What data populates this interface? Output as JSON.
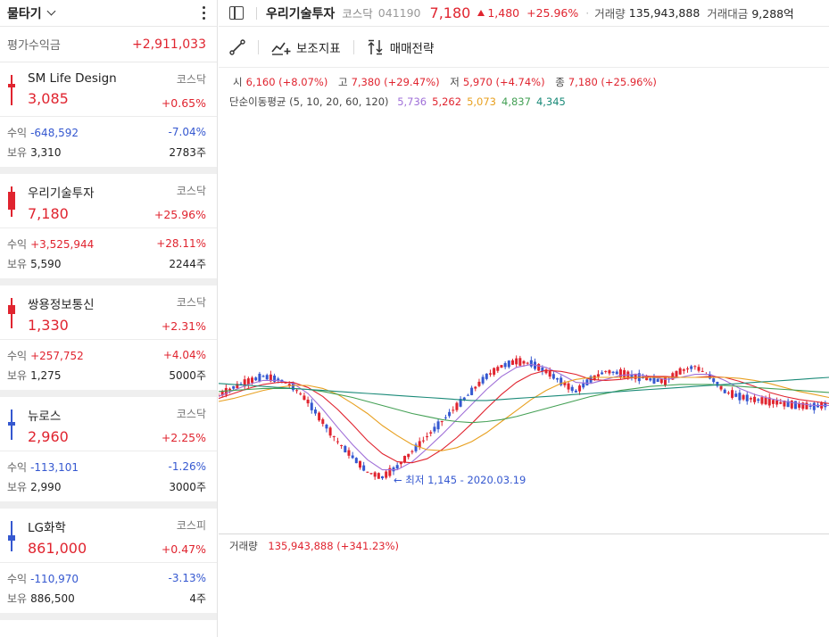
{
  "left": {
    "title": "물타기",
    "eval_label": "평가수익금",
    "eval_value": "+2,911,033",
    "stocks": [
      {
        "name": "SM Life Design",
        "market": "코스닥",
        "price": "3,085",
        "change_pct": "+0.65%",
        "profit_label": "수익",
        "profit": "-648,592",
        "profit_pct": "-7.04%",
        "hold_label": "보유",
        "hold_value": "3,310",
        "qty": "2783주",
        "price_color": "red",
        "profit_color": "blue"
      },
      {
        "name": "우리기술투자",
        "market": "코스닥",
        "price": "7,180",
        "change_pct": "+25.96%",
        "profit_label": "수익",
        "profit": "+3,525,944",
        "profit_pct": "+28.11%",
        "hold_label": "보유",
        "hold_value": "5,590",
        "qty": "2244주",
        "price_color": "red",
        "profit_color": "red"
      },
      {
        "name": "쌍용정보통신",
        "market": "코스닥",
        "price": "1,330",
        "change_pct": "+2.31%",
        "profit_label": "수익",
        "profit": "+257,752",
        "profit_pct": "+4.04%",
        "hold_label": "보유",
        "hold_value": "1,275",
        "qty": "5000주",
        "price_color": "red",
        "profit_color": "red"
      },
      {
        "name": "뉴로스",
        "market": "코스닥",
        "price": "2,960",
        "change_pct": "+2.25%",
        "profit_label": "수익",
        "profit": "-113,101",
        "profit_pct": "-1.26%",
        "hold_label": "보유",
        "hold_value": "2,990",
        "qty": "3000주",
        "price_color": "red",
        "profit_color": "blue"
      },
      {
        "name": "LG화학",
        "market": "코스피",
        "price": "861,000",
        "change_pct": "+0.47%",
        "profit_label": "수익",
        "profit": "-110,970",
        "profit_pct": "-3.13%",
        "hold_label": "보유",
        "hold_value": "886,500",
        "qty": "4주",
        "price_color": "red",
        "profit_color": "blue"
      }
    ]
  },
  "header": {
    "name": "우리기술투자",
    "market": "코스닥",
    "code": "041190",
    "price": "7,180",
    "change": "1,480",
    "change_pct": "+25.96%",
    "volume_label": "거래량",
    "volume": "135,943,888",
    "amount_label": "거래대금",
    "amount": "9,288억"
  },
  "toolbar": {
    "indicator_label": "보조지표",
    "strategy_label": "매매전략"
  },
  "ohlc": {
    "open_label": "시",
    "open": "6,160 (+8.07%)",
    "high_label": "고",
    "high": "7,380 (+29.47%)",
    "low_label": "저",
    "low": "5,970 (+4.74%)",
    "close_label": "종",
    "close": "7,180 (+25.96%)"
  },
  "ma_legend": {
    "label": "단순이동평균 (5, 10, 20, 60, 120)",
    "values": [
      "5,736",
      "5,262",
      "5,073",
      "4,837",
      "4,345"
    ],
    "colors": [
      "#a070d8",
      "#e0242f",
      "#e8a020",
      "#44a055",
      "#1a8a78"
    ]
  },
  "annotation": {
    "low_text": "← 최저 1,145 - 2020.03.19"
  },
  "volume_legend": {
    "label": "거래량",
    "value": "135,943,888 (+341.23%)"
  },
  "colors": {
    "up": "#e0242f",
    "down": "#3558d0"
  },
  "chart_data": {
    "type": "line",
    "title": "",
    "xlabel": "",
    "ylabel": "",
    "series": [
      {
        "name": "종가",
        "values": [
          1960,
          2040,
          2100,
          2150,
          2120,
          2050,
          1900,
          1700,
          1500,
          1350,
          1200,
          1145,
          1250,
          1400,
          1550,
          1700,
          1850,
          2000,
          2150,
          2250,
          2300,
          2280,
          2200,
          2100,
          2000,
          2120,
          2200,
          2180,
          2150,
          2120,
          2100,
          2200,
          2250,
          2150,
          2000,
          1950,
          1920,
          1900,
          1880,
          1860,
          1850,
          1870
        ]
      },
      {
        "name": "5",
        "values": [
          1950,
          2010,
          2070,
          2110,
          2110,
          2080,
          1980,
          1820,
          1640,
          1470,
          1320,
          1220,
          1220,
          1300,
          1430,
          1570,
          1720,
          1870,
          2020,
          2150,
          2240,
          2270,
          2240,
          2170,
          2090,
          2080,
          2120,
          2160,
          2170,
          2150,
          2120,
          2140,
          2170,
          2170,
          2110,
          2030,
          1970,
          1930,
          1900,
          1880,
          1860,
          1860
        ]
      },
      {
        "name": "10",
        "values": [
          1930,
          1980,
          2030,
          2070,
          2090,
          2090,
          2040,
          1950,
          1820,
          1670,
          1510,
          1380,
          1300,
          1290,
          1330,
          1420,
          1540,
          1680,
          1830,
          1970,
          2090,
          2170,
          2210,
          2200,
          2170,
          2120,
          2110,
          2120,
          2140,
          2150,
          2150,
          2140,
          2140,
          2150,
          2140,
          2100,
          2050,
          1990,
          1950,
          1920,
          1900,
          1880
        ]
      },
      {
        "name": "20",
        "values": [
          1900,
          1930,
          1970,
          2010,
          2040,
          2060,
          2060,
          2030,
          1970,
          1880,
          1780,
          1660,
          1560,
          1470,
          1420,
          1410,
          1440,
          1500,
          1590,
          1700,
          1810,
          1920,
          2010,
          2080,
          2120,
          2140,
          2140,
          2140,
          2140,
          2140,
          2140,
          2140,
          2140,
          2140,
          2140,
          2130,
          2110,
          2080,
          2040,
          2000,
          1970,
          1940
        ]
      },
      {
        "name": "60",
        "values": [
          2000,
          2010,
          2020,
          2030,
          2030,
          2030,
          2020,
          2000,
          1970,
          1940,
          1900,
          1860,
          1820,
          1780,
          1750,
          1720,
          1700,
          1690,
          1700,
          1720,
          1750,
          1790,
          1830,
          1870,
          1910,
          1950,
          1980,
          2010,
          2030,
          2050,
          2060,
          2070,
          2070,
          2070,
          2060,
          2050,
          2040,
          2030,
          2020,
          2010,
          2000,
          1990
        ]
      },
      {
        "name": "120",
        "values": [
          2080,
          2070,
          2060,
          2050,
          2040,
          2030,
          2020,
          2010,
          2000,
          1990,
          1980,
          1970,
          1960,
          1950,
          1940,
          1930,
          1920,
          1910,
          1910,
          1920,
          1930,
          1940,
          1950,
          1960,
          1970,
          1980,
          1990,
          2000,
          2010,
          2020,
          2030,
          2040,
          2050,
          2060,
          2070,
          2080,
          2090,
          2100,
          2110,
          2120,
          2130,
          2140
        ]
      }
    ]
  }
}
